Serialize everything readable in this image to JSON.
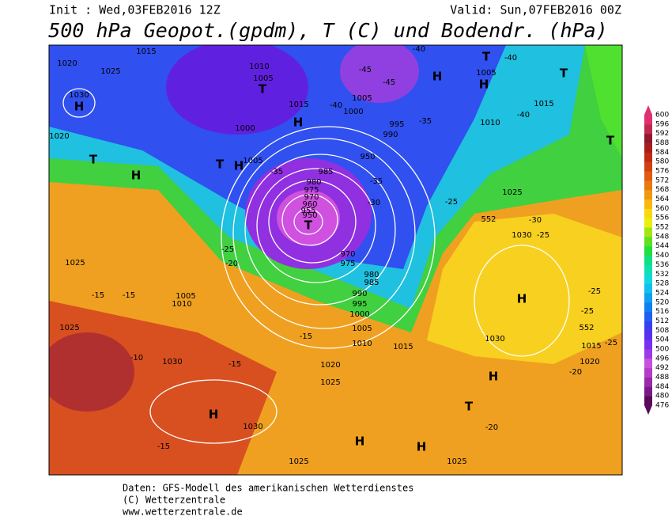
{
  "header": {
    "init": "Init : Wed,03FEB2016 12Z",
    "valid": "Valid: Sun,07FEB2016 00Z",
    "title": "500 hPa Geopot.(gpdm), T (C) und Bodendr. (hPa)"
  },
  "footer": [
    "Daten: GFS-Modell des amerikanischen Wetterdienstes",
    "(C) Wetterzentrale",
    "www.wetterzentrale.de"
  ],
  "colorbar": {
    "labels": [
      476,
      480,
      484,
      488,
      492,
      496,
      500,
      504,
      508,
      512,
      516,
      520,
      524,
      528,
      532,
      536,
      540,
      544,
      548,
      552,
      556,
      560,
      564,
      568,
      572,
      576,
      580,
      584,
      588,
      592,
      596,
      600
    ],
    "colors": [
      "#5a0a5a",
      "#7a1a8a",
      "#9a2aaa",
      "#b43cc8",
      "#c850dc",
      "#9a3ce6",
      "#7a30f0",
      "#5a30f0",
      "#3a40f0",
      "#2060f0",
      "#1080f0",
      "#10a0f0",
      "#10c0f0",
      "#10d8e0",
      "#10e0b0",
      "#10e080",
      "#20e040",
      "#60e020",
      "#a0e810",
      "#e8f010",
      "#f8d810",
      "#f8b810",
      "#f09810",
      "#e87810",
      "#e05a10",
      "#d04010",
      "#c02a10",
      "#a81e20",
      "#901830",
      "#c02850",
      "#e03070"
    ]
  },
  "map": {
    "labels": [
      1015,
      1020,
      1025,
      1030,
      "H",
      1020,
      "T",
      "H",
      1010,
      1005,
      "T",
      1015,
      "H",
      1000,
      1005,
      "T",
      "H",
      985,
      980,
      975,
      970,
      960,
      955,
      950,
      "T",
      970,
      975,
      980,
      985,
      990,
      995,
      1000,
      1005,
      1010,
      1015,
      1020,
      1025,
      1030,
      "H",
      1030,
      1025,
      "H",
      "H",
      1025,
      "T",
      "H",
      1030,
      "H",
      1020,
      1015,
      1025,
      1030,
      1015,
      1010,
      "H",
      1005,
      "H",
      "T",
      "T",
      "T",
      -45,
      -45,
      -40,
      -40,
      -40,
      -40,
      -35,
      -35,
      -35,
      -30,
      -30,
      -25,
      -25,
      -25,
      -20,
      -15,
      -15,
      -15,
      -10,
      -15,
      -15,
      -20,
      -20,
      -25,
      -25,
      -25,
      552,
      552,
      1025,
      1025,
      1005,
      1010,
      990,
      995,
      1005,
      1000,
      950
    ]
  }
}
